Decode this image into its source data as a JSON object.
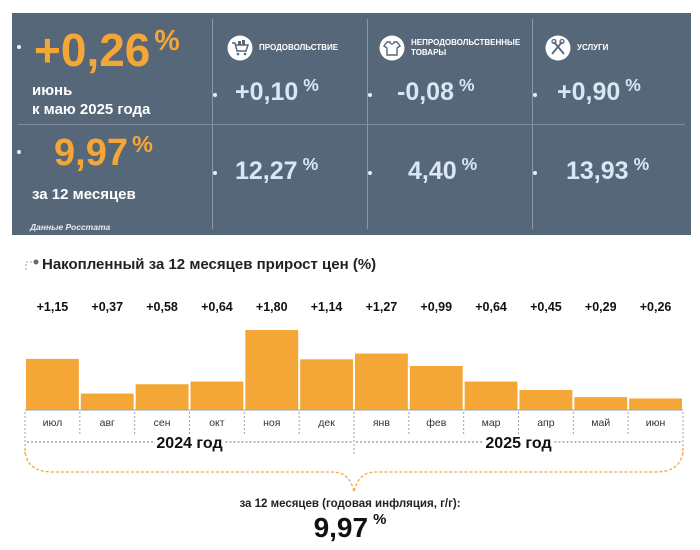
{
  "summary": {
    "monthly": {
      "value": "+0,26",
      "unit": "%",
      "label_line1": "июнь",
      "label_line2": "к маю 2025 года"
    },
    "annual": {
      "value": "9,97",
      "unit": "%",
      "label": "за 12 месяцев"
    },
    "source": "Данные Росстата",
    "categories": [
      {
        "name": "продовольствие",
        "icon": "shopping-cart-icon",
        "monthly": "+0,10",
        "annual": "12,27",
        "unit": "%"
      },
      {
        "name_line1": "непродовольственные",
        "name_line2": "товары",
        "icon": "clothing-icon",
        "monthly": "-0,08",
        "annual": "4,40",
        "unit": "%"
      },
      {
        "name": "услуги",
        "icon": "tools-icon",
        "monthly": "+0,90",
        "annual": "13,93",
        "unit": "%"
      }
    ],
    "colors": {
      "panel": "#56677a",
      "accent": "#f4a637",
      "value": "#d9e6f4"
    }
  },
  "chart_data": {
    "type": "bar",
    "title": "Накопленный за 12 месяцев прирост цен (%)",
    "categories": [
      "июл",
      "авг",
      "сен",
      "окт",
      "ноя",
      "дек",
      "янв",
      "фев",
      "мар",
      "апр",
      "май",
      "июн"
    ],
    "values": [
      1.15,
      0.37,
      0.58,
      0.64,
      1.8,
      1.14,
      1.27,
      0.99,
      0.64,
      0.45,
      0.29,
      0.26
    ],
    "value_labels": [
      "+1,15",
      "+0,37",
      "+0,58",
      "+0,64",
      "+1,80",
      "+1,14",
      "+1,27",
      "+0,99",
      "+0,64",
      "+0,45",
      "+0,29",
      "+0,26"
    ],
    "groups": [
      {
        "label": "2024 год",
        "from": 0,
        "to": 5
      },
      {
        "label": "2025 год",
        "from": 6,
        "to": 11
      }
    ],
    "ylim": [
      0,
      1.8
    ],
    "bar_color": "#f4a637",
    "total_label": "за 12 месяцев (годовая инфляция, г/г):",
    "total_value": "9,97",
    "total_unit": "%"
  }
}
